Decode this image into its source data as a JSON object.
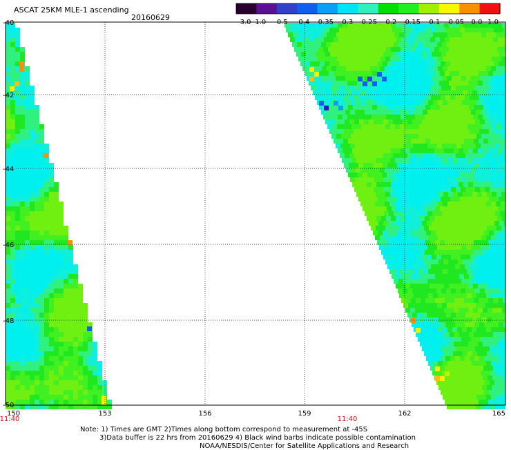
{
  "header": {
    "title": "ASCAT 25KM MLE-1 ascending",
    "date": "20160629"
  },
  "colorbar": {
    "tick_labels": [
      "-3.0",
      "-1.0",
      "-0.5",
      "-0.4",
      "-0.35",
      "-0.3",
      "-0.25",
      "-0.2",
      "-0.15",
      "-0.1",
      "-0.05",
      "0.0",
      "1.0"
    ],
    "colors": [
      "#2a0030",
      "#5a1090",
      "#3040c8",
      "#1060f0",
      "#0aa0f8",
      "#00e4f8",
      "#30f0c0",
      "#00e000",
      "#20f020",
      "#a0f000",
      "#f8f800",
      "#f89000",
      "#f01010"
    ]
  },
  "map": {
    "lat_labels": [
      "-40",
      "-42",
      "-44",
      "-46",
      "-48",
      "-50"
    ],
    "lon_labels": [
      "150",
      "153",
      "156",
      "159",
      "162",
      "165"
    ],
    "time_labels": [
      "11:40",
      "11:40"
    ],
    "gridlines": true
  },
  "notes": {
    "line1": "Note: 1) Times are GMT 2)Times along bottom correspond to measurement at -45S",
    "line2": "3)Data buffer is 22 hrs from 20160629 4) Black wind barbs indicate possible contamination",
    "line3": "NOAA/NESDIS/Center for Satellite Applications and Research"
  }
}
